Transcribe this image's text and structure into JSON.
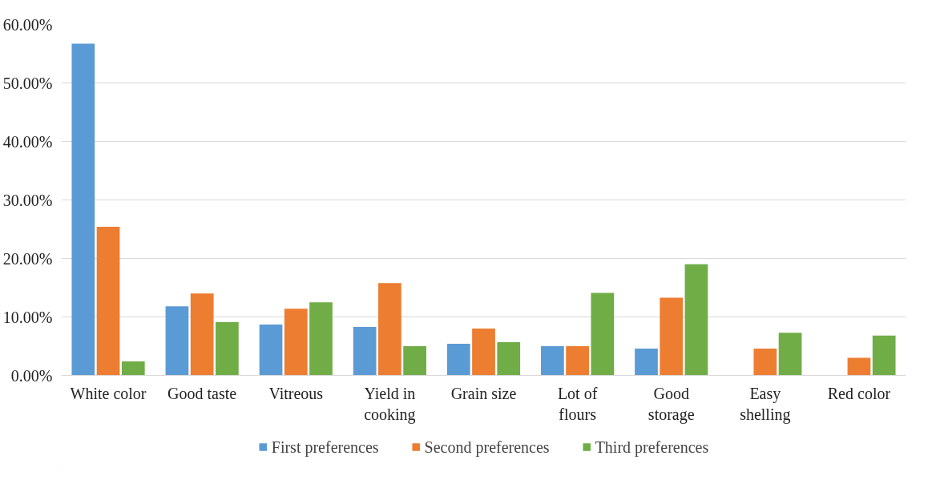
{
  "chart_data": {
    "type": "bar",
    "categories": [
      "White color",
      "Good taste",
      "Vitreous",
      "Yield in cooking",
      "Grain size",
      "Lot of flours",
      "Good storage",
      "Easy shelling",
      "Red color"
    ],
    "series": [
      {
        "name": "First preferences",
        "color": "#5b9bd5",
        "values": [
          56.7,
          11.8,
          8.7,
          8.3,
          5.4,
          5.0,
          4.6,
          0,
          0
        ]
      },
      {
        "name": "Second preferences",
        "color": "#ed7d31",
        "values": [
          25.4,
          14.0,
          11.4,
          15.8,
          8.0,
          5.0,
          13.3,
          4.6,
          3.0
        ]
      },
      {
        "name": "Third preferences",
        "color": "#70ad47",
        "values": [
          2.4,
          9.1,
          12.5,
          5.0,
          5.7,
          14.1,
          19.0,
          7.3,
          6.8
        ]
      }
    ],
    "ylim": [
      0,
      60
    ],
    "yticks": [
      {
        "value": 0,
        "label": "0.00%"
      },
      {
        "value": 10,
        "label": "10.00%"
      },
      {
        "value": 20,
        "label": "20.00%"
      },
      {
        "value": 30,
        "label": "30.00%"
      },
      {
        "value": 40,
        "label": "40.00%"
      },
      {
        "value": 50,
        "label": "50.00%"
      },
      {
        "value": 60,
        "label": "60.00%"
      }
    ],
    "grid": "y",
    "legend": "bottom"
  }
}
